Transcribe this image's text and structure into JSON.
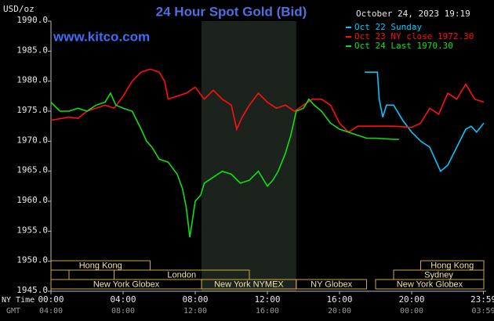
{
  "chart_data": {
    "type": "line",
    "title": "24 Hour Spot Gold (Bid)",
    "unit": "USD/oz",
    "date": "October 24, 2023 19:19",
    "site": "www.kitco.com",
    "ny_label": "NY Time",
    "gmt_label": "GMT",
    "xlim": [
      0,
      24
    ],
    "ylim": [
      1945,
      1990
    ],
    "yticks": [
      {
        "value": 1945,
        "label": "1945.0"
      },
      {
        "value": 1950,
        "label": "1950.0"
      },
      {
        "value": 1955,
        "label": "1955.0"
      },
      {
        "value": 1960,
        "label": "1960.0"
      },
      {
        "value": 1965,
        "label": "1965.0"
      },
      {
        "value": 1970,
        "label": "1970.0"
      },
      {
        "value": 1975,
        "label": "1975.0"
      },
      {
        "value": 1980,
        "label": "1980.0"
      },
      {
        "value": 1985,
        "label": "1985.0"
      },
      {
        "value": 1990,
        "label": "1990.0"
      }
    ],
    "xticks": [
      {
        "value": 0,
        "label": "00:00"
      },
      {
        "value": 4,
        "label": "04:00"
      },
      {
        "value": 8,
        "label": "08:00"
      },
      {
        "value": 12,
        "label": "12:00"
      },
      {
        "value": 16,
        "label": "16:00"
      },
      {
        "value": 20,
        "label": "20:00"
      },
      {
        "value": 23.98,
        "label": "23:59"
      }
    ],
    "gmt_ticks": [
      "04:00",
      "08:00",
      "12:00",
      "16:00",
      "20:00",
      "00:00",
      "03:59"
    ],
    "highlight": [
      8.35,
      13.6
    ],
    "sessions": [
      [
        {
          "name": "Hong Kong",
          "start": 0,
          "end": 5.5
        },
        {
          "name": "Hong Kong",
          "start": 20.5,
          "end": 24
        }
      ],
      [
        {
          "start": 0,
          "end": 1
        },
        {
          "name": "London",
          "start": 3.5,
          "end": 11
        },
        {
          "name": "Sydney",
          "start": 19,
          "end": 24
        }
      ],
      [
        {
          "name": "New York Globex",
          "start": 0,
          "end": 8.35
        },
        {
          "name": "New York NYMEX",
          "start": 8.35,
          "end": 13.6
        },
        {
          "name": "NY Globex",
          "start": 13.6,
          "end": 17.5
        },
        {
          "name": "New York Globex",
          "start": 18,
          "end": 24
        }
      ]
    ],
    "series": [
      {
        "name": "Oct 22 Sunday",
        "color": "#00c8ff",
        "x": [
          17.4,
          18.1,
          18.2,
          18.4,
          18.6,
          19,
          19.5,
          20,
          20.5,
          21,
          21.3,
          21.6,
          22,
          22.5,
          23,
          23.3,
          23.6,
          24
        ],
        "values": [
          1981.5,
          1981.5,
          1977,
          1974,
          1976,
          1976,
          1973.5,
          1971.5,
          1970,
          1969,
          1967,
          1965,
          1966,
          1969,
          1972,
          1972.5,
          1971.5,
          1973
        ]
      },
      {
        "name": "Oct 23 NY close 1972.30",
        "color": "#ff1010",
        "x": [
          0,
          1,
          1.5,
          2,
          3,
          3.5,
          4,
          4.5,
          5,
          5.5,
          6,
          6.3,
          6.5,
          7,
          7.5,
          8,
          8.5,
          9,
          9.5,
          10,
          10.3,
          10.6,
          11,
          11.5,
          12,
          12.5,
          13,
          13.5,
          14,
          14.5,
          15,
          15.5,
          16,
          16.5,
          17,
          18,
          19,
          20,
          20.5,
          21,
          21.5,
          22,
          22.5,
          23,
          23.5,
          24
        ],
        "values": [
          1973.5,
          1974,
          1973.8,
          1975,
          1976,
          1975.5,
          1977.5,
          1980,
          1981.5,
          1982,
          1981.5,
          1980,
          1977,
          1977.5,
          1978,
          1979,
          1977,
          1978.5,
          1977,
          1976,
          1972,
          1974,
          1976,
          1978,
          1976.5,
          1975.5,
          1976,
          1975,
          1976,
          1977,
          1977,
          1976,
          1973,
          1971.5,
          1972.5,
          1972.5,
          1972.5,
          1972.3,
          1973,
          1975.5,
          1974.5,
          1978,
          1977,
          1979.5,
          1977,
          1976.5
        ]
      },
      {
        "name": "Oct 24 Last 1970.30",
        "color": "#10e010",
        "x": [
          0,
          0.5,
          1,
          1.5,
          2,
          2.5,
          3,
          3.3,
          3.6,
          4,
          4.5,
          5,
          5.3,
          5.6,
          6,
          6.5,
          7,
          7.3,
          7.5,
          7.7,
          7.8,
          8,
          8.3,
          8.5,
          9,
          9.5,
          10,
          10.5,
          11,
          11.5,
          12,
          12.3,
          12.6,
          13,
          13.3,
          13.6,
          14,
          14.3,
          14.6,
          15,
          15.5,
          16,
          16.5,
          17,
          17.5,
          18,
          19,
          19.3
        ],
        "values": [
          1976.5,
          1975,
          1975,
          1975.5,
          1975,
          1976,
          1976.5,
          1978,
          1976,
          1975.5,
          1975,
          1972,
          1970,
          1969,
          1967,
          1966.5,
          1964.5,
          1962,
          1959,
          1954,
          1956,
          1960,
          1961,
          1963,
          1964,
          1965,
          1964.5,
          1963,
          1963.5,
          1965,
          1962.5,
          1963.5,
          1965,
          1968,
          1971,
          1975,
          1975.5,
          1977,
          1976,
          1975,
          1973,
          1972,
          1971.5,
          1971,
          1970.5,
          1970.5,
          1970.3,
          1970.3
        ]
      }
    ]
  }
}
